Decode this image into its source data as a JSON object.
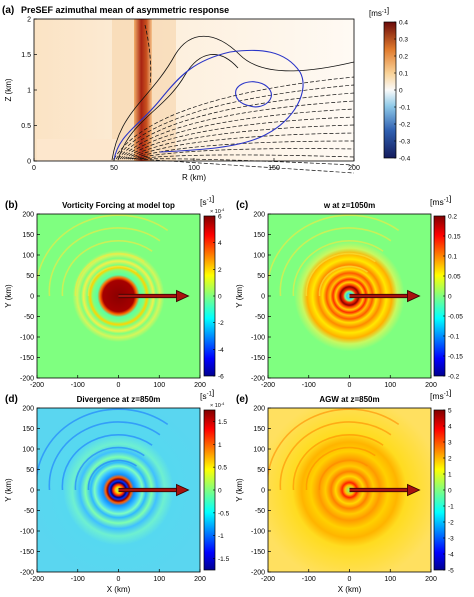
{
  "colors": {
    "axis": "#000000",
    "contour_solid": "#111111",
    "contour_dashed": "#111111",
    "contour_blue": "#2a35c8",
    "arrow_fill": "#a8120e",
    "arrow_edge": "#3a0503"
  },
  "chart_data": [
    {
      "id": "a",
      "panel_label": "(a)",
      "title": "PreSEF azimuthal mean of asymmetric response",
      "type": "heatmap",
      "xlabel": "R (km)",
      "ylabel": "Z (km)",
      "xlim": [
        0,
        200
      ],
      "ylim": [
        0,
        2
      ],
      "x_ticks": [
        "0",
        "50",
        "100",
        "150",
        "200"
      ],
      "y_ticks": [
        "0",
        "0.5",
        "1",
        "1.5",
        "2"
      ],
      "colorbar": {
        "unit_base": "[ms",
        "unit_exp": "-1",
        "unit_close": "]",
        "range": [
          -0.4,
          0.4
        ],
        "ticks": [
          "0.4",
          "0.3",
          "0.2",
          "0.1",
          "0",
          "-0.1",
          "-0.2",
          "-0.3",
          "-0.4"
        ]
      },
      "field_note_colormap": "jet"
    },
    {
      "id": "b",
      "panel_label": "(b)",
      "title": "Vorticity Forcing at model top",
      "type": "heatmap",
      "xlabel": "",
      "ylabel": "Y (km)",
      "xlim": [
        -200,
        200
      ],
      "ylim": [
        -200,
        200
      ],
      "x_ticks": [
        "-200",
        "-100",
        "0",
        "100",
        "200"
      ],
      "y_ticks": [
        "200",
        "150",
        "100",
        "50",
        "0",
        "-50",
        "-100",
        "-150",
        "-200"
      ],
      "colorbar": {
        "unit_base": "[s",
        "unit_exp": "-1",
        "unit_close": "]",
        "scale_base": "× 10",
        "scale_exp": "-4",
        "range": [
          -6,
          6
        ],
        "ticks": [
          "6",
          "4",
          "2",
          "0",
          "-2",
          "-4",
          "-6"
        ]
      }
    },
    {
      "id": "c",
      "panel_label": "(c)",
      "title": "w at z=1050m",
      "type": "heatmap",
      "xlabel": "",
      "ylabel": "Y (km)",
      "xlim": [
        -200,
        200
      ],
      "ylim": [
        -200,
        200
      ],
      "x_ticks": [
        "-200",
        "-100",
        "0",
        "100",
        "200"
      ],
      "y_ticks": [
        "200",
        "150",
        "100",
        "50",
        "0",
        "-50",
        "-100",
        "-150",
        "-200"
      ],
      "colorbar": {
        "unit_base": "[ms",
        "unit_exp": "-1",
        "unit_close": "]",
        "range": [
          -0.2,
          0.2
        ],
        "ticks": [
          "0.2",
          "0.15",
          "0.1",
          "0.05",
          "0",
          "-0.05",
          "-0.1",
          "-0.15",
          "-0.2"
        ]
      }
    },
    {
      "id": "d",
      "panel_label": "(d)",
      "title": "Divergence at z=850m",
      "type": "heatmap",
      "xlabel": "X (km)",
      "ylabel": "Y (km)",
      "xlim": [
        -200,
        200
      ],
      "ylim": [
        -200,
        200
      ],
      "x_ticks": [
        "-200",
        "-100",
        "0",
        "100",
        "200"
      ],
      "y_ticks": [
        "200",
        "150",
        "100",
        "50",
        "0",
        "-50",
        "-100",
        "-150",
        "-200"
      ],
      "colorbar": {
        "unit_base": "[s",
        "unit_exp": "-1",
        "unit_close": "]",
        "scale_base": "× 10",
        "scale_exp": "-4",
        "range": [
          -1.75,
          1.75
        ],
        "ticks": [
          "1.5",
          "1",
          "0.5",
          "0",
          "-0.5",
          "-1",
          "-1.5"
        ]
      }
    },
    {
      "id": "e",
      "panel_label": "(e)",
      "title": "AGW at z=850m",
      "type": "heatmap",
      "xlabel": "X (km)",
      "ylabel": "Y (km)",
      "xlim": [
        -200,
        200
      ],
      "ylim": [
        -200,
        200
      ],
      "x_ticks": [
        "-200",
        "-100",
        "0",
        "100",
        "200"
      ],
      "y_ticks": [
        "200",
        "150",
        "100",
        "50",
        "0",
        "-50",
        "-100",
        "-150",
        "-200"
      ],
      "colorbar": {
        "unit_base": "[ms",
        "unit_exp": "-1",
        "unit_close": "]",
        "range": [
          -5,
          5
        ],
        "ticks": [
          "5",
          "4",
          "3",
          "2",
          "1",
          "0",
          "-1",
          "-2",
          "-3",
          "-4",
          "-5"
        ]
      }
    }
  ]
}
